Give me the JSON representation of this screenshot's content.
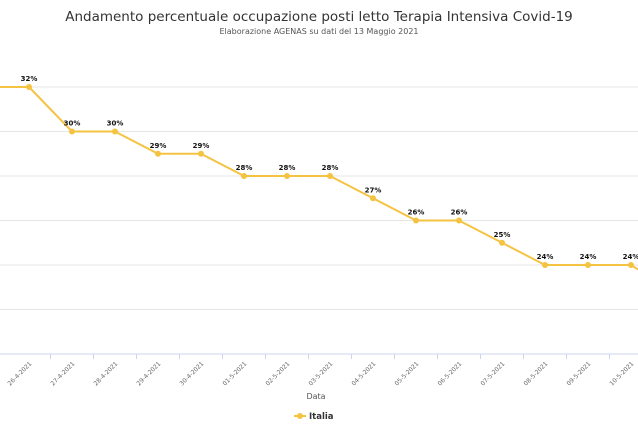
{
  "chart_data": {
    "type": "line",
    "title": "Andamento percentuale occupazione posti letto Terapia Intensiva Covid-19",
    "subtitle": "Elaborazione AGENAS su dati del 13 Maggio 2021",
    "xlabel": "Data",
    "ylabel": "",
    "categories": [
      "26-4-2021",
      "27-4-2021",
      "28-4-2021",
      "29-4-2021",
      "30-4-2021",
      "01-5-2021",
      "02-5-2021",
      "03-5-2021",
      "04-5-2021",
      "05-5-2021",
      "06-5-2021",
      "07-5-2021",
      "08-5-2021",
      "09-5-2021",
      "10-5-2021"
    ],
    "series": [
      {
        "name": "Italia",
        "values": [
          32,
          30,
          30,
          29,
          29,
          28,
          28,
          28,
          27,
          26,
          26,
          25,
          24,
          24,
          24
        ],
        "labels": [
          "32%",
          "30%",
          "30%",
          "29%",
          "29%",
          "28%",
          "28%",
          "28%",
          "27%",
          "26%",
          "26%",
          "25%",
          "24%",
          "24%",
          "24%"
        ]
      }
    ],
    "value_before_first": 32,
    "value_after_last": 23.8,
    "ylim": [
      20,
      33
    ],
    "grid": true,
    "legend": "bottom-center",
    "colors": {
      "line": "#f5c342",
      "marker": "#f5c342",
      "grid": "#e6e6e6",
      "axis": "#ccd6eb"
    }
  }
}
